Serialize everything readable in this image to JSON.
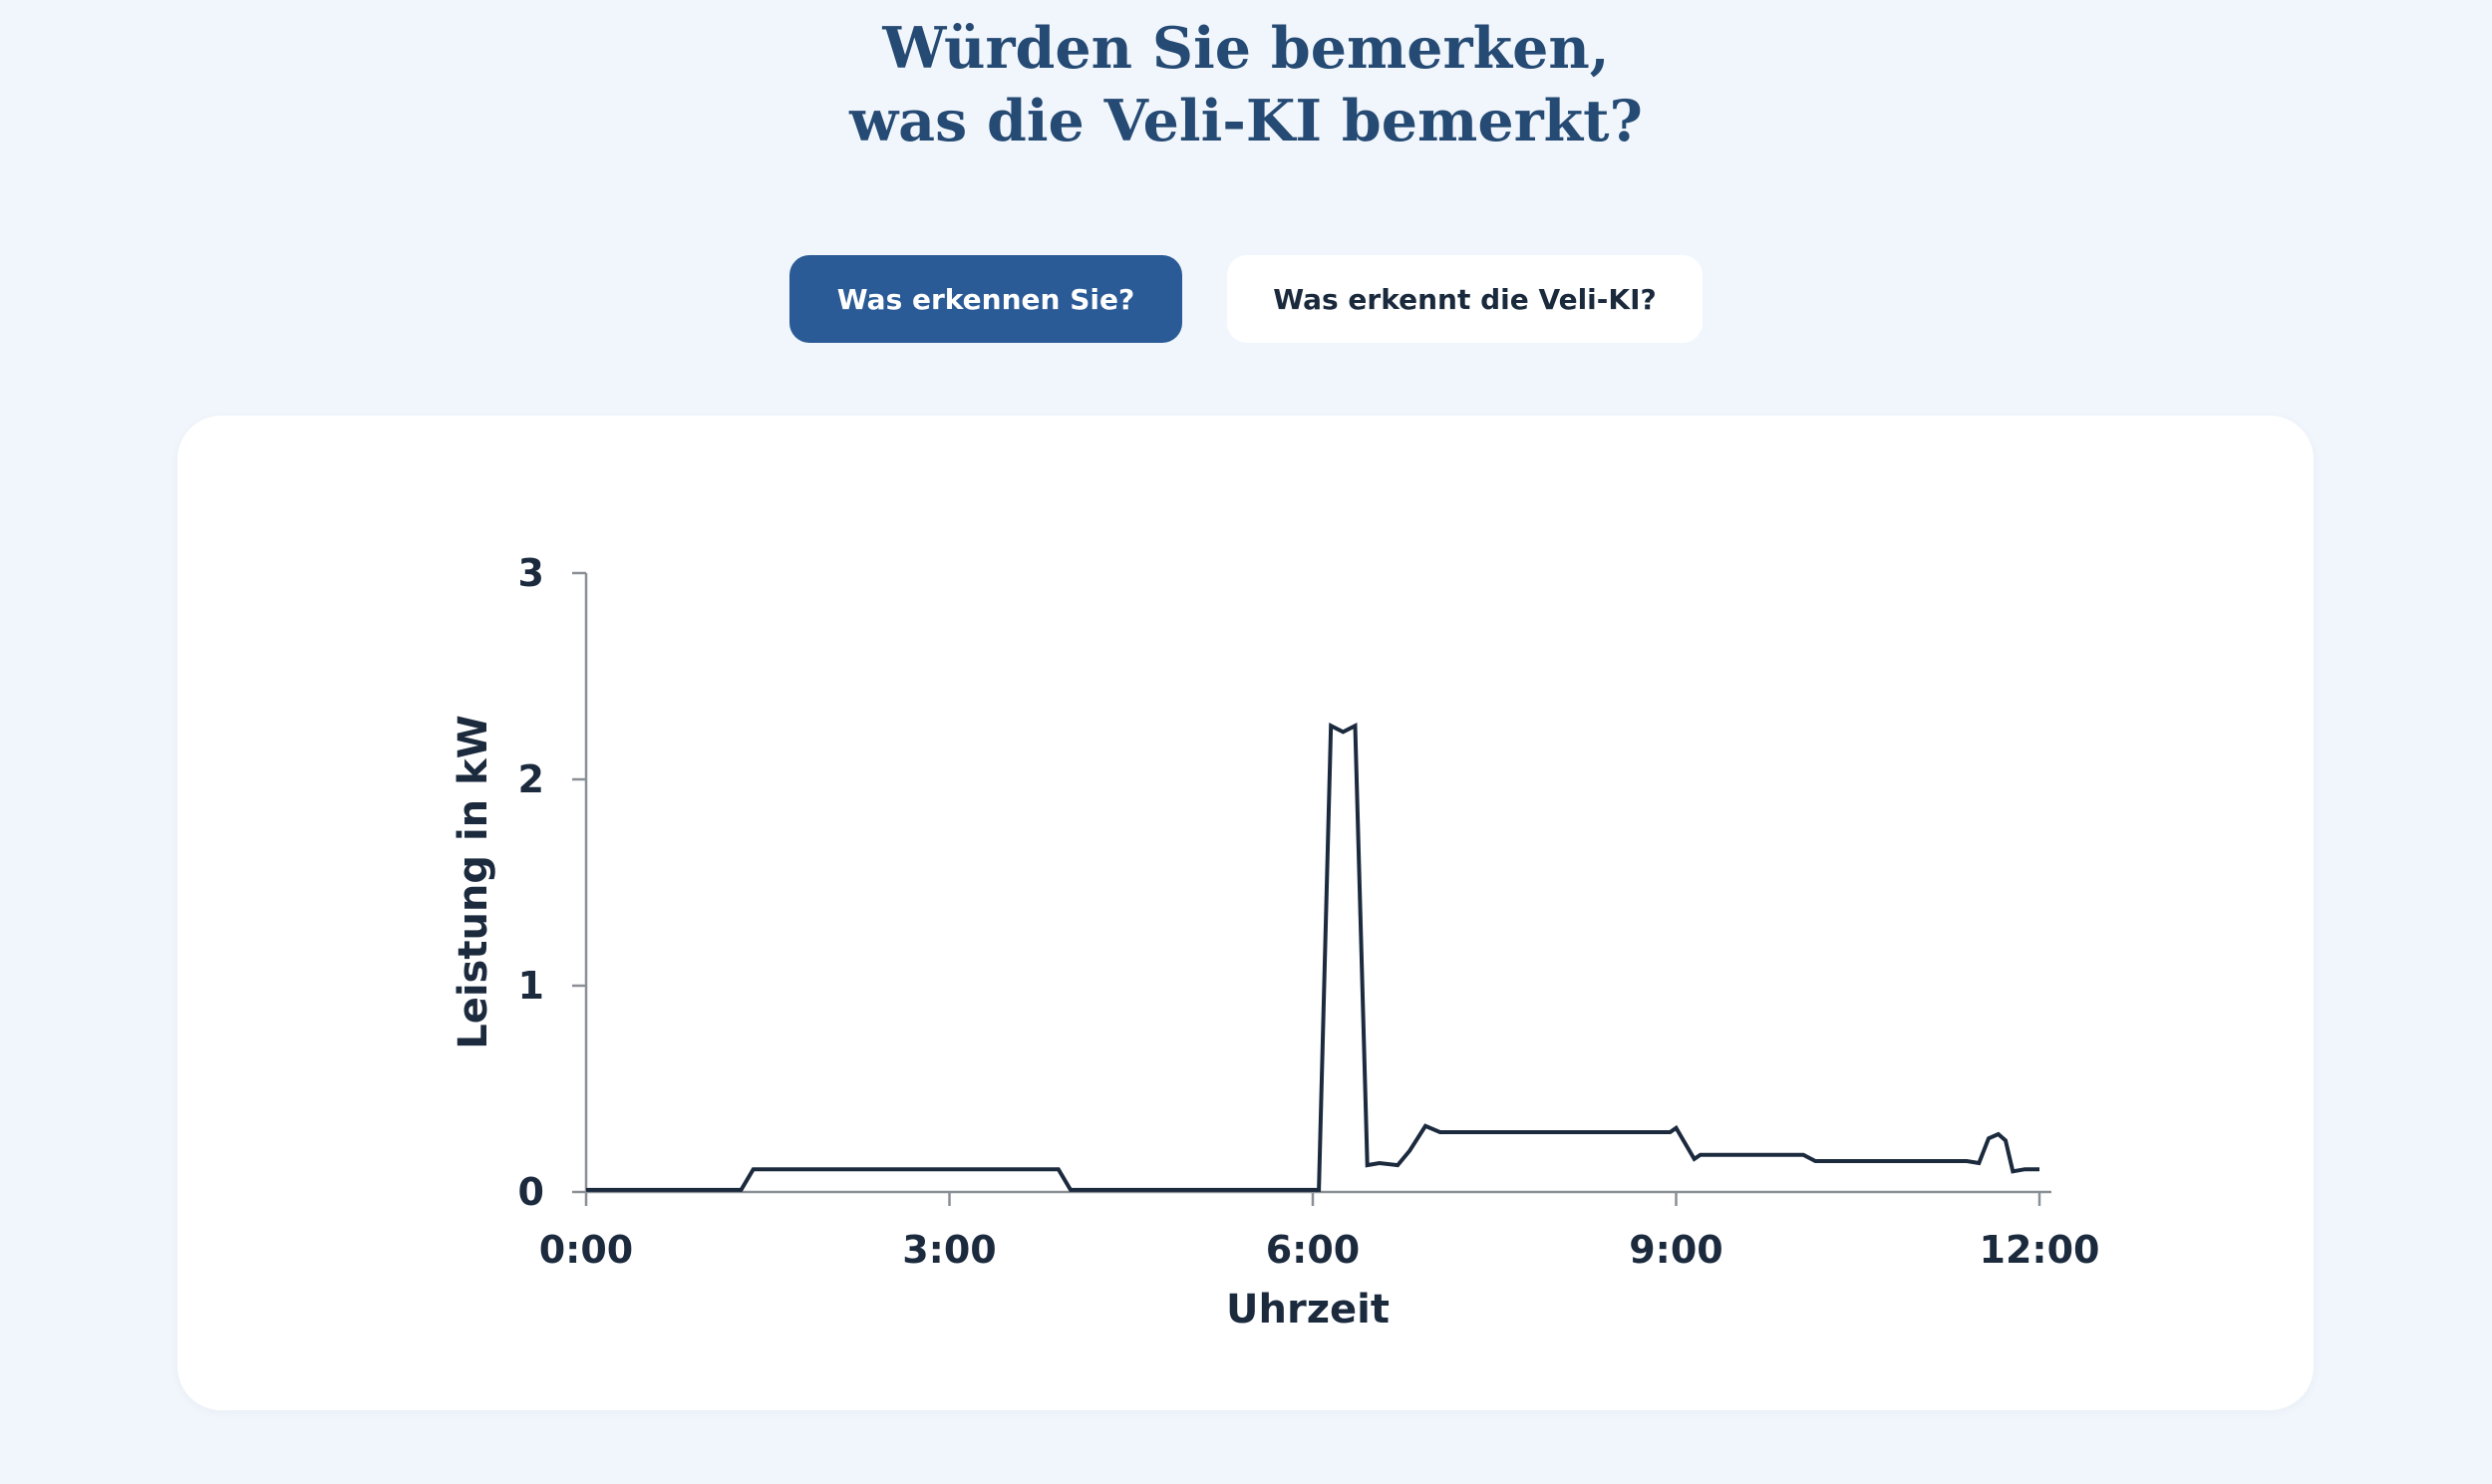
{
  "header": {
    "title_line1": "Würden Sie bemerken,",
    "title_line2": "was die Veli-KI bemerkt?"
  },
  "buttons": {
    "primary_label": "Was erkennen Sie?",
    "secondary_label": "Was erkennt die Veli-KI?"
  },
  "colors": {
    "background": "#f1f6fc",
    "title": "#254a73",
    "primary_button": "#2b5b96",
    "line": "#1c2a3e",
    "axis": "#8a8f96"
  },
  "chart_data": {
    "type": "line",
    "title": "",
    "xlabel": "Uhrzeit",
    "ylabel": "Leistung in kW",
    "xlim": [
      0,
      12
    ],
    "ylim": [
      0,
      3
    ],
    "x_ticks": [
      0,
      3,
      6,
      9,
      12
    ],
    "x_tick_labels": [
      "0:00",
      "3:00",
      "6:00",
      "9:00",
      "12:00"
    ],
    "y_ticks": [
      0,
      1,
      2,
      3
    ],
    "y_tick_labels": [
      "0",
      "1",
      "2",
      "3"
    ],
    "grid": false,
    "series": [
      {
        "x": [
          0,
          1.28,
          1.38,
          3.9,
          4.0,
          6.05,
          6.15,
          6.25,
          6.35,
          6.45,
          6.55,
          6.7,
          6.8,
          6.93,
          7.05,
          8.95,
          9.0,
          9.15,
          9.2,
          10.05,
          10.15,
          11.4,
          11.5,
          11.58,
          11.66,
          11.72,
          11.78,
          11.88,
          12.0
        ],
        "y": [
          0.01,
          0.01,
          0.11,
          0.11,
          0.01,
          0.01,
          2.26,
          2.23,
          2.26,
          0.13,
          0.14,
          0.13,
          0.2,
          0.32,
          0.29,
          0.29,
          0.31,
          0.16,
          0.18,
          0.18,
          0.15,
          0.15,
          0.14,
          0.26,
          0.28,
          0.25,
          0.1,
          0.11,
          0.11
        ]
      }
    ]
  }
}
